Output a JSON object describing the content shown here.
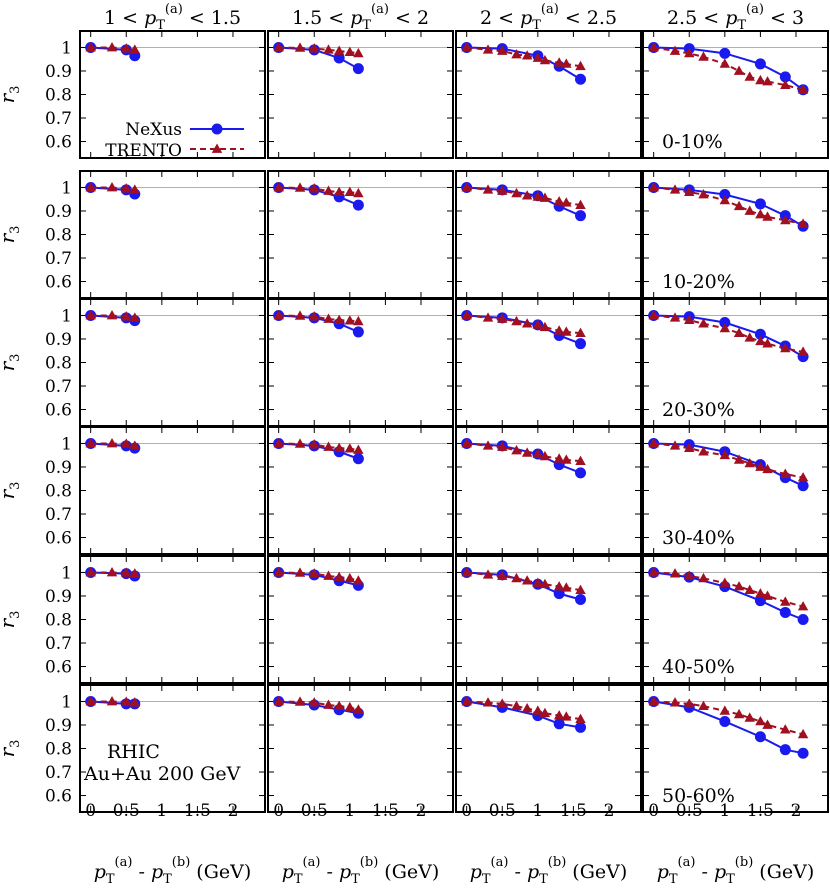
{
  "chart_data": {
    "type": "line",
    "ylabel": "r",
    "ylabel_sub": "3",
    "xlabel_parts": [
      "p",
      "T",
      "(a)",
      " - p",
      "T",
      "(b)",
      " (GeV)"
    ],
    "xlim": [
      -0.15,
      2.45
    ],
    "ylim": [
      0.53,
      1.07
    ],
    "x_ticks": [
      0,
      0.5,
      1,
      1.5,
      2
    ],
    "x_tick_labels": [
      "0",
      "0.5",
      "1",
      "1.5",
      "2"
    ],
    "y_ticks": [
      0.6,
      0.7,
      0.8,
      0.9,
      1
    ],
    "y_tick_labels": [
      "0.6",
      "0.7",
      "0.8",
      "0.9",
      "1"
    ],
    "reference_line": 1,
    "column_titles": [
      {
        "lo": "1",
        "hi": "1.5"
      },
      {
        "lo": "1.5",
        "hi": "2"
      },
      {
        "lo": "2",
        "hi": "2.5"
      },
      {
        "lo": "2.5",
        "hi": "3"
      }
    ],
    "column_title_var": {
      "p": "p",
      "sub": "T",
      "sup": "(a)",
      "lt": "<"
    },
    "centralities": [
      "0-10%",
      "10-20%",
      "20-30%",
      "30-40%",
      "40-50%",
      "50-60%"
    ],
    "legend": [
      {
        "name": "NeXus",
        "color": "#1a1aee",
        "marker": "circle",
        "dash": "solid"
      },
      {
        "name": "TRENTO",
        "color": "#a01020",
        "marker": "triangle",
        "dash": "dashed"
      }
    ],
    "annotation": [
      "RHIC",
      "Au+Au 200 GeV"
    ],
    "x": [
      [
        0,
        0.3,
        0.5,
        0.62
      ],
      [
        0,
        0.3,
        0.5,
        0.7,
        0.85,
        1.0,
        1.12
      ],
      [
        0,
        0.3,
        0.5,
        0.7,
        0.85,
        1.0,
        1.1,
        1.3,
        1.4,
        1.6
      ],
      [
        0,
        0.3,
        0.5,
        0.7,
        1.0,
        1.2,
        1.35,
        1.5,
        1.6,
        1.85,
        2.1
      ]
    ],
    "series": [
      {
        "name": "NeXus",
        "panels": [
          [
            [
              1.0,
              null,
              0.99,
              0.965
            ],
            [
              1.0,
              null,
              0.99,
              null,
              0.955,
              null,
              0.91
            ],
            [
              1.0,
              null,
              0.995,
              null,
              null,
              0.965,
              null,
              0.92,
              null,
              0.865
            ],
            [
              1.0,
              null,
              0.995,
              null,
              0.975,
              null,
              null,
              0.93,
              null,
              0.875,
              0.82
            ]
          ],
          [
            [
              1.0,
              null,
              0.99,
              0.972
            ],
            [
              1.0,
              null,
              0.99,
              null,
              0.96,
              null,
              0.925
            ],
            [
              1.0,
              null,
              0.99,
              null,
              null,
              0.965,
              null,
              0.92,
              null,
              0.88
            ],
            [
              1.0,
              null,
              0.99,
              null,
              0.97,
              null,
              null,
              0.93,
              null,
              0.88,
              0.835
            ]
          ],
          [
            [
              1.0,
              null,
              0.99,
              0.978
            ],
            [
              1.0,
              null,
              0.99,
              null,
              0.965,
              null,
              0.93
            ],
            [
              1.0,
              null,
              0.99,
              null,
              null,
              0.96,
              null,
              0.915,
              null,
              0.88
            ],
            [
              1.0,
              null,
              0.995,
              null,
              0.97,
              null,
              null,
              0.92,
              null,
              0.87,
              0.825
            ]
          ],
          [
            [
              1.0,
              null,
              0.99,
              0.98
            ],
            [
              1.0,
              null,
              0.99,
              null,
              0.965,
              null,
              0.935
            ],
            [
              1.0,
              null,
              0.99,
              null,
              null,
              0.955,
              null,
              0.91,
              null,
              0.875
            ],
            [
              1.0,
              null,
              0.995,
              null,
              0.965,
              null,
              null,
              0.91,
              null,
              0.855,
              0.82
            ]
          ],
          [
            [
              1.0,
              null,
              0.995,
              0.985
            ],
            [
              1.0,
              null,
              0.99,
              null,
              0.965,
              null,
              0.945
            ],
            [
              1.0,
              null,
              0.99,
              null,
              null,
              0.95,
              null,
              0.91,
              null,
              0.885
            ],
            [
              1.0,
              null,
              0.98,
              null,
              0.94,
              null,
              null,
              0.88,
              null,
              0.83,
              0.8
            ]
          ],
          [
            [
              1.0,
              null,
              0.99,
              0.99
            ],
            [
              1.0,
              null,
              0.985,
              null,
              0.965,
              null,
              0.95
            ],
            [
              1.0,
              null,
              0.975,
              null,
              null,
              0.94,
              null,
              0.905,
              null,
              0.89
            ],
            [
              1.0,
              null,
              0.975,
              null,
              0.915,
              null,
              null,
              0.85,
              null,
              0.795,
              0.78
            ]
          ]
        ]
      },
      {
        "name": "TRENTO",
        "panels": [
          [
            [
              1.0,
              1.0,
              0.995,
              0.99
            ],
            [
              1.0,
              0.998,
              0.995,
              0.99,
              0.985,
              0.98,
              0.975
            ],
            [
              1.0,
              0.99,
              0.985,
              0.97,
              0.965,
              0.955,
              0.945,
              0.935,
              0.93,
              0.92
            ],
            [
              1.0,
              0.985,
              0.975,
              0.96,
              0.93,
              0.9,
              0.875,
              0.86,
              0.855,
              0.84,
              0.82
            ]
          ],
          [
            [
              1.0,
              1.0,
              0.995,
              0.99
            ],
            [
              1.0,
              0.998,
              0.995,
              0.985,
              0.98,
              0.98,
              0.975
            ],
            [
              1.0,
              0.99,
              0.985,
              0.975,
              0.965,
              0.96,
              0.955,
              0.94,
              0.935,
              0.925
            ],
            [
              1.0,
              0.99,
              0.98,
              0.97,
              0.945,
              0.92,
              0.9,
              0.885,
              0.875,
              0.86,
              0.845
            ]
          ],
          [
            [
              1.0,
              1.0,
              0.995,
              0.99
            ],
            [
              1.0,
              0.998,
              0.995,
              0.985,
              0.98,
              0.978,
              0.975
            ],
            [
              1.0,
              0.99,
              0.985,
              0.975,
              0.965,
              0.96,
              0.95,
              0.935,
              0.93,
              0.925
            ],
            [
              1.0,
              0.99,
              0.98,
              0.965,
              0.945,
              0.925,
              0.905,
              0.89,
              0.88,
              0.86,
              0.845
            ]
          ],
          [
            [
              1.0,
              1.0,
              0.998,
              0.99
            ],
            [
              1.0,
              0.998,
              0.995,
              0.985,
              0.98,
              0.978,
              0.972
            ],
            [
              1.0,
              0.99,
              0.985,
              0.97,
              0.96,
              0.955,
              0.945,
              0.935,
              0.93,
              0.925
            ],
            [
              1.0,
              0.99,
              0.98,
              0.965,
              0.95,
              0.93,
              0.915,
              0.9,
              0.89,
              0.87,
              0.855
            ]
          ],
          [
            [
              1.0,
              1.0,
              0.998,
              0.995
            ],
            [
              1.0,
              0.998,
              0.995,
              0.985,
              0.98,
              0.975,
              0.965
            ],
            [
              1.0,
              0.99,
              0.985,
              0.975,
              0.965,
              0.955,
              0.95,
              0.94,
              0.935,
              0.925
            ],
            [
              1.0,
              0.995,
              0.985,
              0.975,
              0.955,
              0.94,
              0.925,
              0.91,
              0.9,
              0.875,
              0.855
            ]
          ],
          [
            [
              1.0,
              1.0,
              0.998,
              0.995
            ],
            [
              1.0,
              0.998,
              0.995,
              0.985,
              0.98,
              0.975,
              0.965
            ],
            [
              1.0,
              0.995,
              0.99,
              0.98,
              0.97,
              0.96,
              0.95,
              0.94,
              0.935,
              0.925
            ],
            [
              1.0,
              0.995,
              0.99,
              0.98,
              0.96,
              0.945,
              0.93,
              0.915,
              0.9,
              0.88,
              0.86
            ]
          ]
        ]
      }
    ]
  }
}
